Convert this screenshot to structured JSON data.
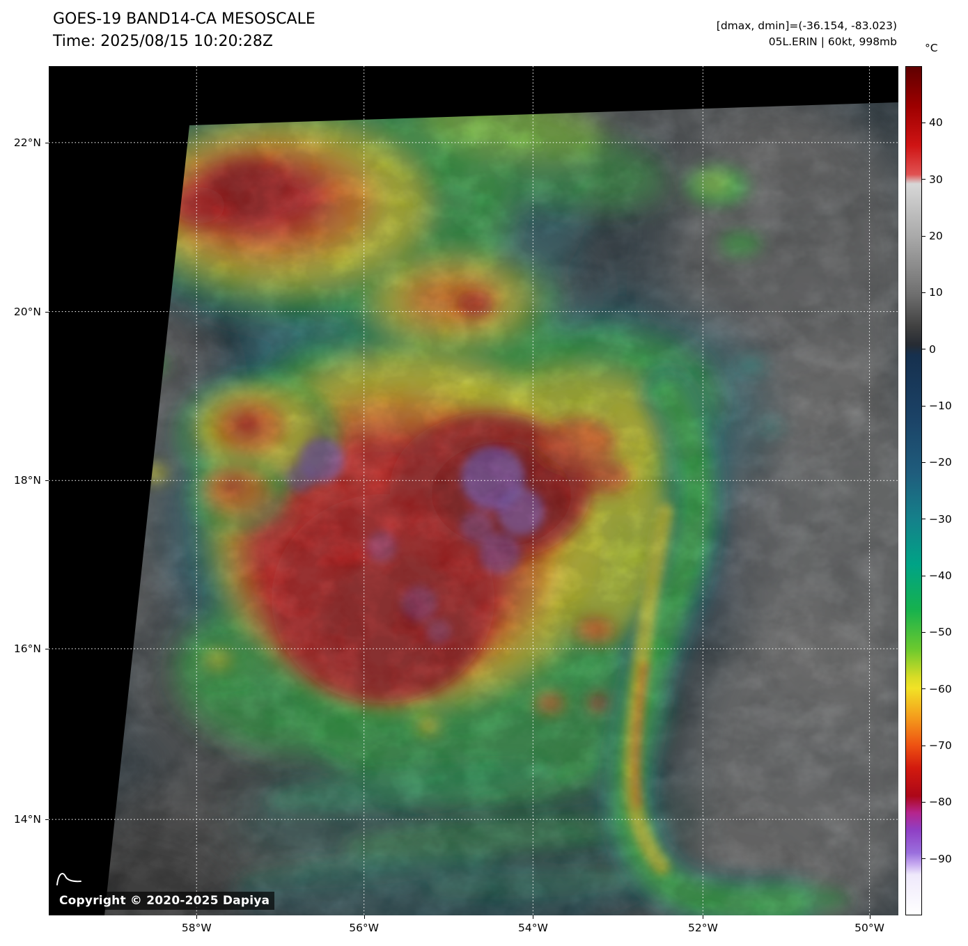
{
  "header": {
    "title": "GOES-19 BAND14-CA MESOSCALE",
    "time_line": "Time: 2025/08/15 10:20:28Z",
    "dmax_dmin": "[dmax, dmin]=(-36.154, -83.023)",
    "storm_info": "05L.ERIN | 60kt, 998mb"
  },
  "map": {
    "copyright": "Copyright © 2020-2025 Dapiya"
  },
  "colorbar": {
    "unit": "°C",
    "ticks": [
      {
        "label": "40",
        "pct": 6.67
      },
      {
        "label": "30",
        "pct": 13.33
      },
      {
        "label": "20",
        "pct": 20.0
      },
      {
        "label": "10",
        "pct": 26.67
      },
      {
        "label": "0",
        "pct": 33.33
      },
      {
        "label": "−10",
        "pct": 40.0
      },
      {
        "label": "−20",
        "pct": 46.67
      },
      {
        "label": "−30",
        "pct": 53.33
      },
      {
        "label": "−40",
        "pct": 60.0
      },
      {
        "label": "−50",
        "pct": 66.67
      },
      {
        "label": "−60",
        "pct": 73.33
      },
      {
        "label": "−70",
        "pct": 80.0
      },
      {
        "label": "−80",
        "pct": 86.67
      },
      {
        "label": "−90",
        "pct": 93.33
      }
    ],
    "gradient": [
      {
        "pct": 0,
        "color": "#5f0000"
      },
      {
        "pct": 4.7,
        "color": "#9e0000"
      },
      {
        "pct": 9.3,
        "color": "#cf1414"
      },
      {
        "pct": 12.7,
        "color": "#e05252"
      },
      {
        "pct": 13.8,
        "color": "#d7d7d7"
      },
      {
        "pct": 20,
        "color": "#a9a9a9"
      },
      {
        "pct": 26.7,
        "color": "#707070"
      },
      {
        "pct": 30.7,
        "color": "#404040"
      },
      {
        "pct": 32.8,
        "color": "#262b33"
      },
      {
        "pct": 34,
        "color": "#16304e"
      },
      {
        "pct": 41.3,
        "color": "#1b4266"
      },
      {
        "pct": 48,
        "color": "#1f5d7d"
      },
      {
        "pct": 53.3,
        "color": "#15808a"
      },
      {
        "pct": 58.7,
        "color": "#00a386"
      },
      {
        "pct": 64,
        "color": "#16b14e"
      },
      {
        "pct": 68.7,
        "color": "#6cc92e"
      },
      {
        "pct": 72,
        "color": "#d8dc26"
      },
      {
        "pct": 73.3,
        "color": "#f2e226"
      },
      {
        "pct": 76.7,
        "color": "#f49d1c"
      },
      {
        "pct": 80,
        "color": "#ee5212"
      },
      {
        "pct": 82.7,
        "color": "#d21a0e"
      },
      {
        "pct": 86,
        "color": "#ac0718"
      },
      {
        "pct": 88,
        "color": "#b5258d"
      },
      {
        "pct": 90,
        "color": "#8f3fc4"
      },
      {
        "pct": 92.7,
        "color": "#9a6fdd"
      },
      {
        "pct": 94,
        "color": "#c5a8ef"
      },
      {
        "pct": 95.3,
        "color": "#efe9fb"
      },
      {
        "pct": 100,
        "color": "#ffffff"
      }
    ]
  },
  "axes": {
    "lat_ticks": [
      {
        "label": "22°N",
        "pct": 9.0
      },
      {
        "label": "20°N",
        "pct": 28.9
      },
      {
        "label": "18°N",
        "pct": 48.8
      },
      {
        "label": "16°N",
        "pct": 68.6
      },
      {
        "label": "14°N",
        "pct": 88.7
      }
    ],
    "lon_ticks": [
      {
        "label": "58°W",
        "pct": 17.4
      },
      {
        "label": "56°W",
        "pct": 37.1
      },
      {
        "label": "54°W",
        "pct": 57.0
      },
      {
        "label": "52°W",
        "pct": 77.0
      },
      {
        "label": "50°W",
        "pct": 96.6
      }
    ]
  }
}
